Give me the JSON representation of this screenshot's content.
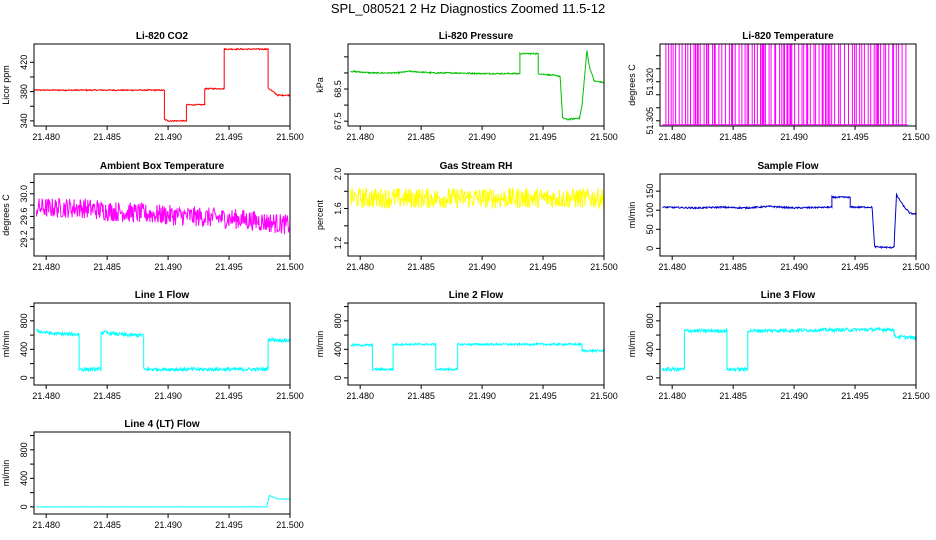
{
  "title": "SPL_080521  2 Hz Diagnostics Zoomed 11.5-12",
  "chart_data": [
    {
      "type": "line",
      "title": "Li-820 CO2",
      "ylabel": "Licor ppm",
      "color": "#ff0000",
      "xlim": [
        21.479,
        21.5
      ],
      "ylim": [
        333,
        445
      ],
      "xticks": [
        "21.480",
        "21.485",
        "21.490",
        "21.495",
        "21.500"
      ],
      "yticks": [
        340,
        380,
        420
      ],
      "yticks_minor": [
        360,
        400
      ],
      "noise": 0.8,
      "series": [
        {
          "x": [
            21.479,
            21.4897,
            21.4897,
            21.49,
            21.49,
            21.4915,
            21.4915,
            21.493,
            21.493,
            21.4946,
            21.4946,
            21.4982,
            21.4982,
            21.499,
            21.5
          ],
          "y": [
            382,
            382,
            342,
            340,
            340,
            340,
            362,
            362,
            384,
            384,
            438,
            438,
            385,
            375,
            375
          ]
        }
      ]
    },
    {
      "type": "line",
      "title": "Li-820 Pressure",
      "ylabel": "kPa",
      "color": "#00c000",
      "xlim": [
        21.479,
        21.5
      ],
      "ylim": [
        67.35,
        69.9
      ],
      "xticks": [
        "21.480",
        "21.485",
        "21.490",
        "21.495",
        "21.500"
      ],
      "yticks": [
        "67.5",
        "68.5"
      ],
      "yticks_minor": [
        68.0,
        69.0,
        69.5
      ],
      "noise": 0.02,
      "series": [
        {
          "x": [
            21.4792,
            21.481,
            21.483,
            21.484,
            21.486,
            21.488,
            21.49,
            21.4925,
            21.4931,
            21.4931,
            21.4944,
            21.4946,
            21.4946,
            21.4964,
            21.4966,
            21.497,
            21.498,
            21.4982,
            21.4986,
            21.4988,
            21.4992,
            21.5
          ],
          "y": [
            69.05,
            69.0,
            69.0,
            69.05,
            69.0,
            69.0,
            68.98,
            68.98,
            68.98,
            69.6,
            69.6,
            69.6,
            68.98,
            68.9,
            67.6,
            67.55,
            67.6,
            68.0,
            69.7,
            69.2,
            68.75,
            68.7
          ]
        }
      ]
    },
    {
      "type": "spikes",
      "title": "Li-820 Temperature",
      "ylabel": "degrees C",
      "color": "#ff00ff",
      "xlim": [
        21.479,
        21.5
      ],
      "ylim": [
        51.303,
        51.3345
      ],
      "xticks": [
        "21.480",
        "21.485",
        "21.490",
        "21.495",
        "21.500"
      ],
      "yticks": [
        "51.305",
        "51.320"
      ],
      "yticks_minor": [
        51.31,
        51.315,
        51.325,
        51.33
      ],
      "base": 51.3035,
      "top": 51.3345,
      "start": 21.4792,
      "end": 21.4993
    },
    {
      "type": "line",
      "title": "Ambient Box Temperature",
      "ylabel": "degrees C",
      "color": "#ff00ff",
      "xlim": [
        21.479,
        21.5
      ],
      "ylim": [
        28.9,
        30.35
      ],
      "xticks": [
        "21.480",
        "21.485",
        "21.490",
        "21.495",
        "21.500"
      ],
      "yticks": [
        "29.2",
        "29.6",
        "30.0"
      ],
      "yticks_minor": [
        29.4,
        29.8,
        30.2
      ],
      "noise": 0.18,
      "series": [
        {
          "x": [
            21.4792,
            21.481,
            21.483,
            21.485,
            21.488,
            21.492,
            21.496,
            21.5
          ],
          "y": [
            29.75,
            29.75,
            29.75,
            29.7,
            29.65,
            29.6,
            29.55,
            29.45
          ]
        }
      ]
    },
    {
      "type": "line",
      "title": "Gas Stream RH",
      "ylabel": "percent",
      "color": "#ffff00",
      "xlim": [
        21.479,
        21.5
      ],
      "ylim": [
        1.05,
        2.0
      ],
      "xticks": [
        "21.480",
        "21.485",
        "21.490",
        "21.495",
        "21.500"
      ],
      "yticks": [
        "1.2",
        "1.6",
        "2.0"
      ],
      "yticks_minor": [
        1.4,
        1.8
      ],
      "noise": 0.12,
      "series": [
        {
          "x": [
            21.4792,
            21.5
          ],
          "y": [
            1.72,
            1.72
          ]
        }
      ]
    },
    {
      "type": "line",
      "title": "Sample Flow",
      "ylabel": "ml/min",
      "color": "#0000cc",
      "xlim": [
        21.479,
        21.5
      ],
      "ylim": [
        -20,
        195
      ],
      "xticks": [
        "21.480",
        "21.485",
        "21.490",
        "21.495",
        "21.500"
      ],
      "yticks": [
        0,
        50,
        100,
        150
      ],
      "noise": 2,
      "series": [
        {
          "x": [
            21.4792,
            21.482,
            21.484,
            21.486,
            21.488,
            21.49,
            21.4931,
            21.4931,
            21.4946,
            21.4946,
            21.4964,
            21.4966,
            21.498,
            21.4982,
            21.4984,
            21.499,
            21.4995,
            21.5
          ],
          "y": [
            108,
            106,
            108,
            106,
            110,
            106,
            108,
            134,
            134,
            108,
            108,
            4,
            2,
            5,
            140,
            110,
            92,
            90
          ]
        }
      ]
    },
    {
      "type": "line",
      "title": "Line 1 Flow",
      "ylabel": "ml/min",
      "color": "#00ffff",
      "xlim": [
        21.479,
        21.5
      ],
      "ylim": [
        -100,
        1050
      ],
      "xticks": [
        "21.480",
        "21.485",
        "21.490",
        "21.495",
        "21.500"
      ],
      "yticks": [
        0,
        400,
        800
      ],
      "yticks_minor": [
        200,
        600,
        1000
      ],
      "noise": 25,
      "series": [
        {
          "x": [
            21.4792,
            21.4805,
            21.4827,
            21.4827,
            21.4845,
            21.4845,
            21.4865,
            21.488,
            21.488,
            21.4982,
            21.4982,
            21.5
          ],
          "y": [
            660,
            620,
            610,
            120,
            120,
            640,
            600,
            600,
            120,
            120,
            540,
            520
          ]
        }
      ]
    },
    {
      "type": "line",
      "title": "Line 2 Flow",
      "ylabel": "ml/min",
      "color": "#00ffff",
      "xlim": [
        21.479,
        21.5
      ],
      "ylim": [
        -100,
        1050
      ],
      "xticks": [
        "21.480",
        "21.485",
        "21.490",
        "21.495",
        "21.500"
      ],
      "yticks": [
        0,
        400,
        800
      ],
      "yticks_minor": [
        200,
        600,
        1000
      ],
      "noise": 15,
      "series": [
        {
          "x": [
            21.4792,
            21.481,
            21.481,
            21.4827,
            21.4827,
            21.4862,
            21.4862,
            21.488,
            21.488,
            21.4982,
            21.4982,
            21.5
          ],
          "y": [
            460,
            460,
            120,
            120,
            470,
            470,
            120,
            120,
            470,
            470,
            380,
            380
          ]
        }
      ]
    },
    {
      "type": "line",
      "title": "Line 3 Flow",
      "ylabel": "ml/min",
      "color": "#00ffff",
      "xlim": [
        21.479,
        21.5
      ],
      "ylim": [
        -100,
        1050
      ],
      "xticks": [
        "21.480",
        "21.485",
        "21.490",
        "21.495",
        "21.500"
      ],
      "yticks": [
        0,
        400,
        800
      ],
      "yticks_minor": [
        200,
        600,
        1000
      ],
      "noise": 25,
      "series": [
        {
          "x": [
            21.4792,
            21.481,
            21.481,
            21.4845,
            21.4845,
            21.4862,
            21.4862,
            21.4982,
            21.4982,
            21.5
          ],
          "y": [
            120,
            120,
            660,
            660,
            120,
            120,
            660,
            680,
            580,
            560
          ]
        }
      ]
    },
    {
      "type": "line",
      "title": "Line 4 (LT) Flow",
      "ylabel": "ml/min",
      "color": "#00ffff",
      "xlim": [
        21.479,
        21.5
      ],
      "ylim": [
        -100,
        1050
      ],
      "xticks": [
        "21.480",
        "21.485",
        "21.490",
        "21.495",
        "21.500"
      ],
      "yticks": [
        0,
        400,
        800
      ],
      "yticks_minor": [
        200,
        600,
        1000
      ],
      "noise": 2,
      "series": [
        {
          "x": [
            21.4792,
            21.4981,
            21.4983,
            21.499,
            21.5
          ],
          "y": [
            0,
            0,
            160,
            110,
            110
          ]
        }
      ]
    }
  ]
}
